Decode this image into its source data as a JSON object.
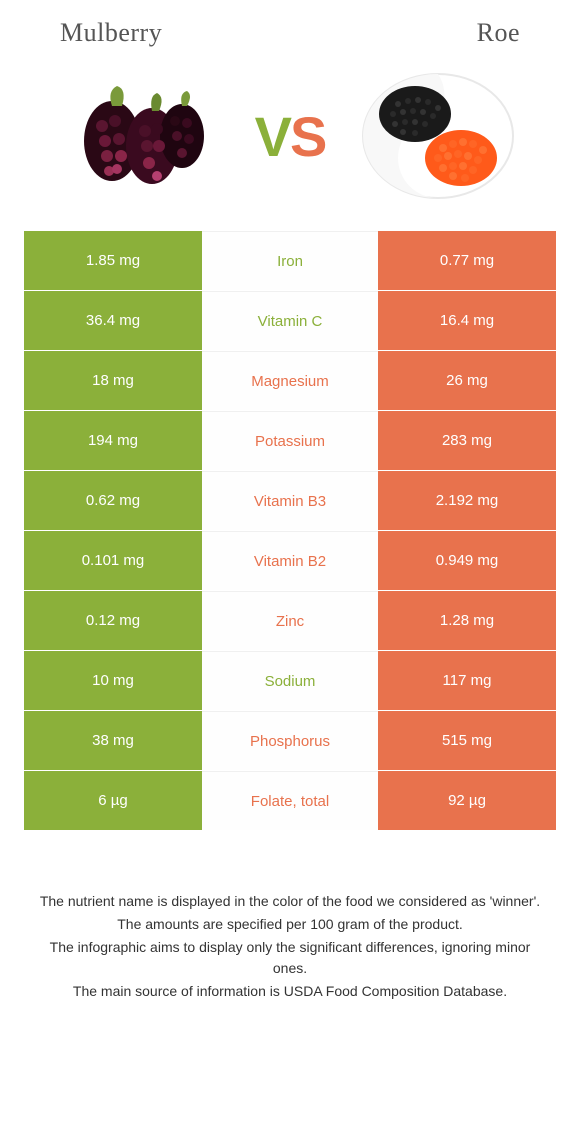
{
  "header": {
    "left_title": "Mulberry",
    "right_title": "Roe"
  },
  "vs": {
    "v": "V",
    "s": "S"
  },
  "colors": {
    "left": "#8bb03a",
    "right": "#e8724d"
  },
  "rows": [
    {
      "nutrient": "Iron",
      "left": "1.85 mg",
      "right": "0.77 mg",
      "winner": "left"
    },
    {
      "nutrient": "Vitamin C",
      "left": "36.4 mg",
      "right": "16.4 mg",
      "winner": "left"
    },
    {
      "nutrient": "Magnesium",
      "left": "18 mg",
      "right": "26 mg",
      "winner": "right"
    },
    {
      "nutrient": "Potassium",
      "left": "194 mg",
      "right": "283 mg",
      "winner": "right"
    },
    {
      "nutrient": "Vitamin B3",
      "left": "0.62 mg",
      "right": "2.192 mg",
      "winner": "right"
    },
    {
      "nutrient": "Vitamin B2",
      "left": "0.101 mg",
      "right": "0.949 mg",
      "winner": "right"
    },
    {
      "nutrient": "Zinc",
      "left": "0.12 mg",
      "right": "1.28 mg",
      "winner": "right"
    },
    {
      "nutrient": "Sodium",
      "left": "10 mg",
      "right": "117 mg",
      "winner": "left"
    },
    {
      "nutrient": "Phosphorus",
      "left": "38 mg",
      "right": "515 mg",
      "winner": "right"
    },
    {
      "nutrient": "Folate, total",
      "left": "6 µg",
      "right": "92 µg",
      "winner": "right"
    }
  ],
  "footer": {
    "line1": "The nutrient name is displayed in the color of the food we considered as 'winner'.",
    "line2": "The amounts are specified per 100 gram of the product.",
    "line3": "The infographic aims to display only the significant differences, ignoring minor ones.",
    "line4": "The main source of information is USDA Food Composition Database."
  }
}
